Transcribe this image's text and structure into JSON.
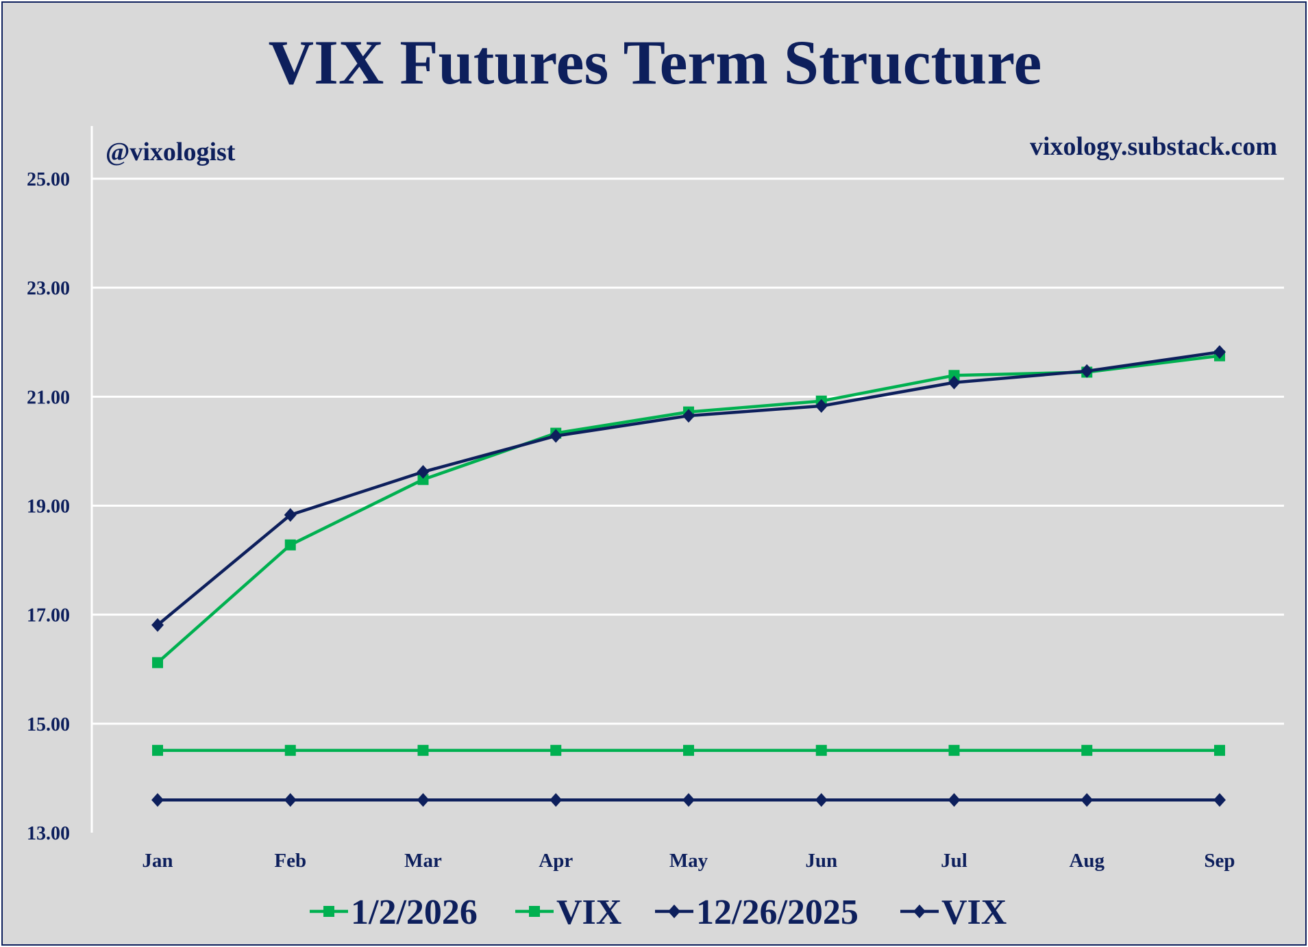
{
  "chart_data": {
    "type": "line",
    "title": "VIX Futures Term Structure",
    "annotations": {
      "handle": "@vixologist",
      "site": "vixology.substack.com"
    },
    "categories": [
      "Jan",
      "Feb",
      "Mar",
      "Apr",
      "May",
      "Jun",
      "Jul",
      "Aug",
      "Sep"
    ],
    "ylim": [
      13,
      25
    ],
    "yticks": [
      13,
      15,
      17,
      19,
      21,
      23,
      25
    ],
    "ytick_labels": [
      "13.00",
      "15.00",
      "17.00",
      "19.00",
      "21.00",
      "23.00",
      "25.00"
    ],
    "grid": "horizontal",
    "legend_position": "bottom",
    "series": [
      {
        "name": "1/2/2026",
        "color": "#00b050",
        "marker": "square",
        "values": [
          16.12,
          18.28,
          19.48,
          20.33,
          20.72,
          20.92,
          21.39,
          21.45,
          21.75
        ]
      },
      {
        "name": "VIX",
        "color": "#00b050",
        "marker": "square",
        "values": [
          14.51,
          14.51,
          14.51,
          14.51,
          14.51,
          14.51,
          14.51,
          14.51,
          14.51
        ]
      },
      {
        "name": "12/26/2025",
        "color": "#0d1f5c",
        "marker": "diamond",
        "values": [
          16.81,
          18.83,
          19.62,
          20.28,
          20.65,
          20.83,
          21.26,
          21.47,
          21.82
        ]
      },
      {
        "name": "VIX",
        "color": "#0d1f5c",
        "marker": "diamond",
        "values": [
          13.6,
          13.6,
          13.6,
          13.6,
          13.6,
          13.6,
          13.6,
          13.6,
          13.6
        ]
      }
    ]
  }
}
